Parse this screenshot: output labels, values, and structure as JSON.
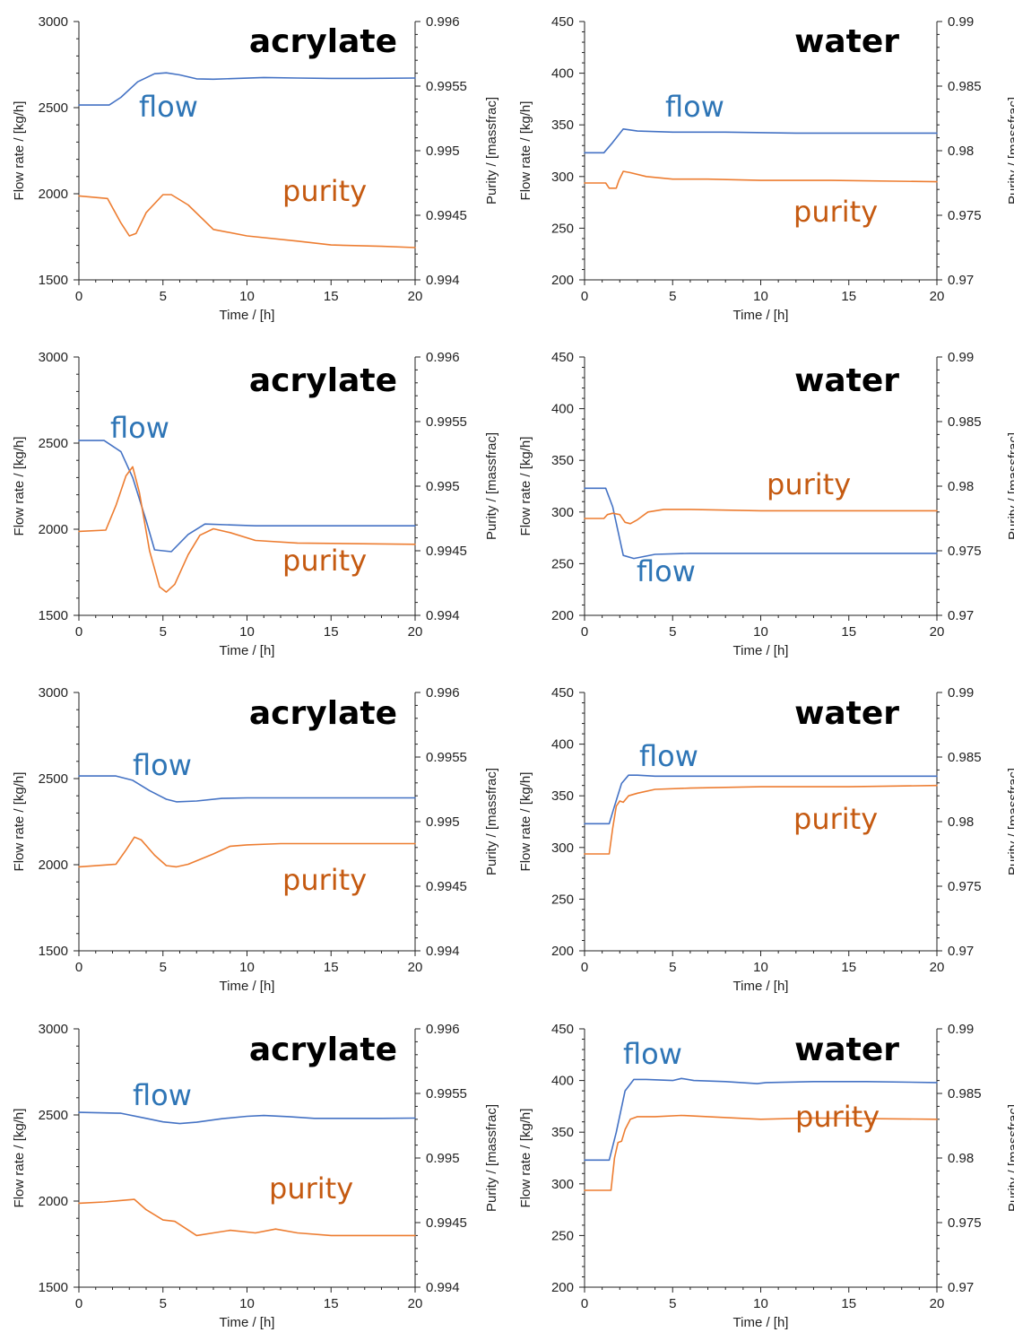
{
  "colors": {
    "flow": "#4472C4",
    "purity": "#ED7D31",
    "flow_label": "#2E75B6",
    "purity_label": "#C55A11"
  },
  "chart_data": [
    {
      "type": "line",
      "title": "acrylate",
      "xlabel": "Time / [h]",
      "ylabel": "Flow rate / [kg/h]",
      "y2label": "Purity / [massfrac]",
      "xlim": [
        0,
        20
      ],
      "ylim": [
        1500,
        3000
      ],
      "y2lim": [
        0.994,
        0.996
      ],
      "xticks": [
        "0",
        "5",
        "10",
        "15",
        "20"
      ],
      "yticks": [
        "1500",
        "2000",
        "2500",
        "3000"
      ],
      "y2ticks": [
        "0.994",
        "0.9945",
        "0.995",
        "0.9955",
        "0.996"
      ],
      "series": [
        {
          "name": "flow",
          "axis": "left",
          "color": "#4472C4",
          "x": [
            0,
            1.8,
            2.5,
            3.5,
            4.5,
            5.2,
            6,
            7,
            8,
            9,
            11,
            13,
            15,
            17,
            20
          ],
          "y": [
            2515,
            2515,
            2560,
            2650,
            2697,
            2702,
            2690,
            2667,
            2665,
            2668,
            2675,
            2672,
            2670,
            2670,
            2672
          ]
        },
        {
          "name": "purity",
          "axis": "right",
          "color": "#ED7D31",
          "x": [
            0,
            1.7,
            2.5,
            3,
            3.4,
            4,
            5,
            5.5,
            6.5,
            8,
            10,
            13,
            15,
            18,
            20
          ],
          "y": [
            0.99465,
            0.99463,
            0.99444,
            0.99434,
            0.99436,
            0.99452,
            0.99466,
            0.99466,
            0.99458,
            0.99439,
            0.99434,
            0.9943,
            0.99427,
            0.99426,
            0.99425
          ]
        }
      ]
    },
    {
      "type": "line",
      "title": "water",
      "xlabel": "Time / [h]",
      "ylabel": "Flow rate / [kg/h]",
      "y2label": "Purity / [massfrac]",
      "xlim": [
        0,
        20
      ],
      "ylim": [
        200,
        450
      ],
      "y2lim": [
        0.97,
        0.99
      ],
      "xticks": [
        "0",
        "5",
        "10",
        "15",
        "20"
      ],
      "yticks": [
        "200",
        "250",
        "300",
        "350",
        "400",
        "450"
      ],
      "y2ticks": [
        "0.97",
        "0.975",
        "0.98",
        "0.985",
        "0.99"
      ],
      "series": [
        {
          "name": "flow",
          "axis": "left",
          "color": "#4472C4",
          "x": [
            0,
            1.1,
            1.6,
            2.2,
            3,
            5,
            8,
            12,
            16,
            20
          ],
          "y": [
            323,
            323,
            333,
            346,
            344,
            343,
            343,
            342,
            342,
            342
          ]
        },
        {
          "name": "purity",
          "axis": "right",
          "color": "#ED7D31",
          "x": [
            0,
            1.2,
            1.4,
            1.8,
            1.95,
            2.2,
            2.6,
            3.5,
            5,
            7,
            10,
            14,
            20
          ],
          "y": [
            0.9775,
            0.9775,
            0.9771,
            0.9771,
            0.9777,
            0.9784,
            0.9783,
            0.978,
            0.9778,
            0.9778,
            0.9777,
            0.9777,
            0.9776
          ]
        }
      ]
    },
    {
      "type": "line",
      "title": "acrylate",
      "xlabel": "Time / [h]",
      "ylabel": "Flow rate / [kg/h]",
      "y2label": "Purity / [massfrac]",
      "xlim": [
        0,
        20
      ],
      "ylim": [
        1500,
        3000
      ],
      "y2lim": [
        0.994,
        0.996
      ],
      "xticks": [
        "0",
        "5",
        "10",
        "15",
        "20"
      ],
      "yticks": [
        "1500",
        "2000",
        "2500",
        "3000"
      ],
      "y2ticks": [
        "0.994",
        "0.9945",
        "0.995",
        "0.9955",
        "0.996"
      ],
      "series": [
        {
          "name": "flow",
          "axis": "left",
          "color": "#4472C4",
          "x": [
            0,
            1.5,
            2.5,
            3.2,
            4,
            4.5,
            5.5,
            6.5,
            7.5,
            9,
            10.5,
            13,
            16,
            20
          ],
          "y": [
            2515,
            2515,
            2450,
            2300,
            2050,
            1880,
            1870,
            1970,
            2030,
            2025,
            2020,
            2020,
            2020,
            2020
          ]
        },
        {
          "name": "purity",
          "axis": "right",
          "color": "#ED7D31",
          "x": [
            0,
            1.6,
            2.2,
            2.8,
            3.2,
            3.6,
            4.2,
            4.8,
            5.2,
            5.7,
            6.5,
            7.2,
            8,
            9,
            10.5,
            13,
            20
          ],
          "y": [
            0.99465,
            0.99466,
            0.99485,
            0.99508,
            0.99515,
            0.99495,
            0.9945,
            0.99422,
            0.99418,
            0.99424,
            0.99447,
            0.99462,
            0.99467,
            0.99464,
            0.99458,
            0.99456,
            0.99455
          ]
        }
      ]
    },
    {
      "type": "line",
      "title": "water",
      "xlabel": "Time / [h]",
      "ylabel": "Flow rate / [kg/h]",
      "y2label": "Purity / [massfrac]",
      "xlim": [
        0,
        20
      ],
      "ylim": [
        200,
        450
      ],
      "y2lim": [
        0.97,
        0.99
      ],
      "xticks": [
        "0",
        "5",
        "10",
        "15",
        "20"
      ],
      "yticks": [
        "200",
        "250",
        "300",
        "350",
        "400",
        "450"
      ],
      "y2ticks": [
        "0.97",
        "0.975",
        "0.98",
        "0.985",
        "0.99"
      ],
      "series": [
        {
          "name": "flow",
          "axis": "left",
          "color": "#4472C4",
          "x": [
            0,
            1.2,
            1.6,
            2.2,
            2.8,
            4,
            6,
            10,
            15,
            20
          ],
          "y": [
            323,
            323,
            305,
            258,
            255,
            259,
            260,
            260,
            260,
            260
          ]
        },
        {
          "name": "purity",
          "axis": "right",
          "color": "#ED7D31",
          "x": [
            0,
            1.1,
            1.3,
            1.6,
            2,
            2.3,
            2.6,
            3,
            3.6,
            4.5,
            6,
            10,
            15,
            20
          ],
          "y": [
            0.9775,
            0.9775,
            0.9778,
            0.9779,
            0.9778,
            0.9772,
            0.9771,
            0.9774,
            0.978,
            0.9782,
            0.9782,
            0.9781,
            0.9781,
            0.9781
          ]
        }
      ]
    },
    {
      "type": "line",
      "title": "acrylate",
      "xlabel": "Time / [h]",
      "ylabel": "Flow rate / [kg/h]",
      "y2label": "Purity / [massfrac]",
      "xlim": [
        0,
        20
      ],
      "ylim": [
        1500,
        3000
      ],
      "y2lim": [
        0.994,
        0.996
      ],
      "xticks": [
        "0",
        "5",
        "10",
        "15",
        "20"
      ],
      "yticks": [
        "1500",
        "2000",
        "2500",
        "3000"
      ],
      "y2ticks": [
        "0.994",
        "0.9945",
        "0.995",
        "0.9955",
        "0.996"
      ],
      "series": [
        {
          "name": "flow",
          "axis": "left",
          "color": "#4472C4",
          "x": [
            0,
            2.2,
            3.2,
            4.2,
            5.2,
            5.8,
            7,
            8.5,
            10,
            12,
            15,
            20
          ],
          "y": [
            2515,
            2515,
            2490,
            2430,
            2380,
            2365,
            2370,
            2385,
            2388,
            2388,
            2388,
            2388
          ]
        },
        {
          "name": "purity",
          "axis": "right",
          "color": "#ED7D31",
          "x": [
            0,
            2.2,
            2.8,
            3.3,
            3.7,
            4.5,
            5.2,
            5.8,
            6.5,
            8,
            9,
            10,
            12,
            15,
            20
          ],
          "y": [
            0.99465,
            0.99467,
            0.99478,
            0.99488,
            0.99486,
            0.99474,
            0.99466,
            0.99465,
            0.99467,
            0.99475,
            0.99481,
            0.99482,
            0.99483,
            0.99483,
            0.99483
          ]
        }
      ]
    },
    {
      "type": "line",
      "title": "water",
      "xlabel": "Time / [h]",
      "ylabel": "Flow rate / [kg/h]",
      "y2label": "Purity / [massfrac]",
      "xlim": [
        0,
        20
      ],
      "ylim": [
        200,
        450
      ],
      "y2lim": [
        0.97,
        0.99
      ],
      "xticks": [
        "0",
        "5",
        "10",
        "15",
        "20"
      ],
      "yticks": [
        "200",
        "250",
        "300",
        "350",
        "400",
        "450"
      ],
      "y2ticks": [
        "0.97",
        "0.975",
        "0.98",
        "0.985",
        "0.99"
      ],
      "series": [
        {
          "name": "flow",
          "axis": "left",
          "color": "#4472C4",
          "x": [
            0,
            1.4,
            1.7,
            2.1,
            2.5,
            3,
            4,
            6,
            10,
            15,
            20
          ],
          "y": [
            323,
            323,
            340,
            362,
            370,
            370,
            369,
            369,
            369,
            369,
            369
          ]
        },
        {
          "name": "purity",
          "axis": "right",
          "color": "#ED7D31",
          "x": [
            0,
            1.4,
            1.6,
            1.8,
            2,
            2.2,
            2.5,
            3,
            4,
            6,
            10,
            15,
            20
          ],
          "y": [
            0.9775,
            0.9775,
            0.9795,
            0.9812,
            0.9816,
            0.9815,
            0.982,
            0.9822,
            0.9825,
            0.9826,
            0.9827,
            0.9827,
            0.9828
          ]
        }
      ]
    },
    {
      "type": "line",
      "title": "acrylate",
      "xlabel": "Time / [h]",
      "ylabel": "Flow rate / [kg/h]",
      "y2label": "Purity / [massfrac]",
      "xlim": [
        0,
        20
      ],
      "ylim": [
        1500,
        3000
      ],
      "y2lim": [
        0.994,
        0.996
      ],
      "xticks": [
        "0",
        "5",
        "10",
        "15",
        "20"
      ],
      "yticks": [
        "1500",
        "2000",
        "2500",
        "3000"
      ],
      "y2ticks": [
        "0.994",
        "0.9945",
        "0.995",
        "0.9955",
        "0.996"
      ],
      "series": [
        {
          "name": "flow",
          "axis": "left",
          "color": "#4472C4",
          "x": [
            0,
            2.5,
            4,
            5,
            6,
            7,
            8.5,
            10,
            11,
            12.5,
            14,
            16,
            18,
            20
          ],
          "y": [
            2515,
            2510,
            2480,
            2460,
            2450,
            2458,
            2478,
            2492,
            2497,
            2490,
            2480,
            2480,
            2480,
            2482
          ]
        },
        {
          "name": "purity",
          "axis": "right",
          "color": "#ED7D31",
          "x": [
            0,
            1.5,
            3.3,
            4,
            5,
            5.7,
            6.3,
            7,
            8,
            9,
            10.5,
            11.7,
            13,
            15,
            20
          ],
          "y": [
            0.99465,
            0.99466,
            0.99468,
            0.9946,
            0.99452,
            0.99451,
            0.99446,
            0.9944,
            0.99442,
            0.99444,
            0.99442,
            0.99445,
            0.99442,
            0.9944,
            0.9944
          ]
        }
      ]
    },
    {
      "type": "line",
      "title": "water",
      "xlabel": "Time / [h]",
      "ylabel": "Flow rate / [kg/h]",
      "y2label": "Purity / [massfrac]",
      "xlim": [
        0,
        20
      ],
      "ylim": [
        200,
        450
      ],
      "y2lim": [
        0.97,
        0.99
      ],
      "xticks": [
        "0",
        "5",
        "10",
        "15",
        "20"
      ],
      "yticks": [
        "200",
        "250",
        "300",
        "350",
        "400",
        "450"
      ],
      "y2ticks": [
        "0.97",
        "0.975",
        "0.98",
        "0.985",
        "0.99"
      ],
      "series": [
        {
          "name": "flow",
          "axis": "left",
          "color": "#4472C4",
          "x": [
            0,
            1.4,
            1.8,
            2.3,
            2.8,
            3.5,
            5,
            5.5,
            6.2,
            8,
            9.8,
            10.3,
            13,
            16,
            20
          ],
          "y": [
            323,
            323,
            350,
            390,
            401,
            401,
            400,
            402,
            400,
            399,
            397,
            398,
            399,
            399,
            398
          ]
        },
        {
          "name": "purity",
          "axis": "right",
          "color": "#ED7D31",
          "x": [
            0,
            1.5,
            1.7,
            1.9,
            2.1,
            2.3,
            2.6,
            3,
            4,
            5.5,
            7,
            10,
            13,
            20
          ],
          "y": [
            0.9775,
            0.9775,
            0.98,
            0.9812,
            0.9813,
            0.9822,
            0.983,
            0.9832,
            0.9832,
            0.9833,
            0.9832,
            0.983,
            0.9831,
            0.983
          ]
        }
      ]
    }
  ]
}
